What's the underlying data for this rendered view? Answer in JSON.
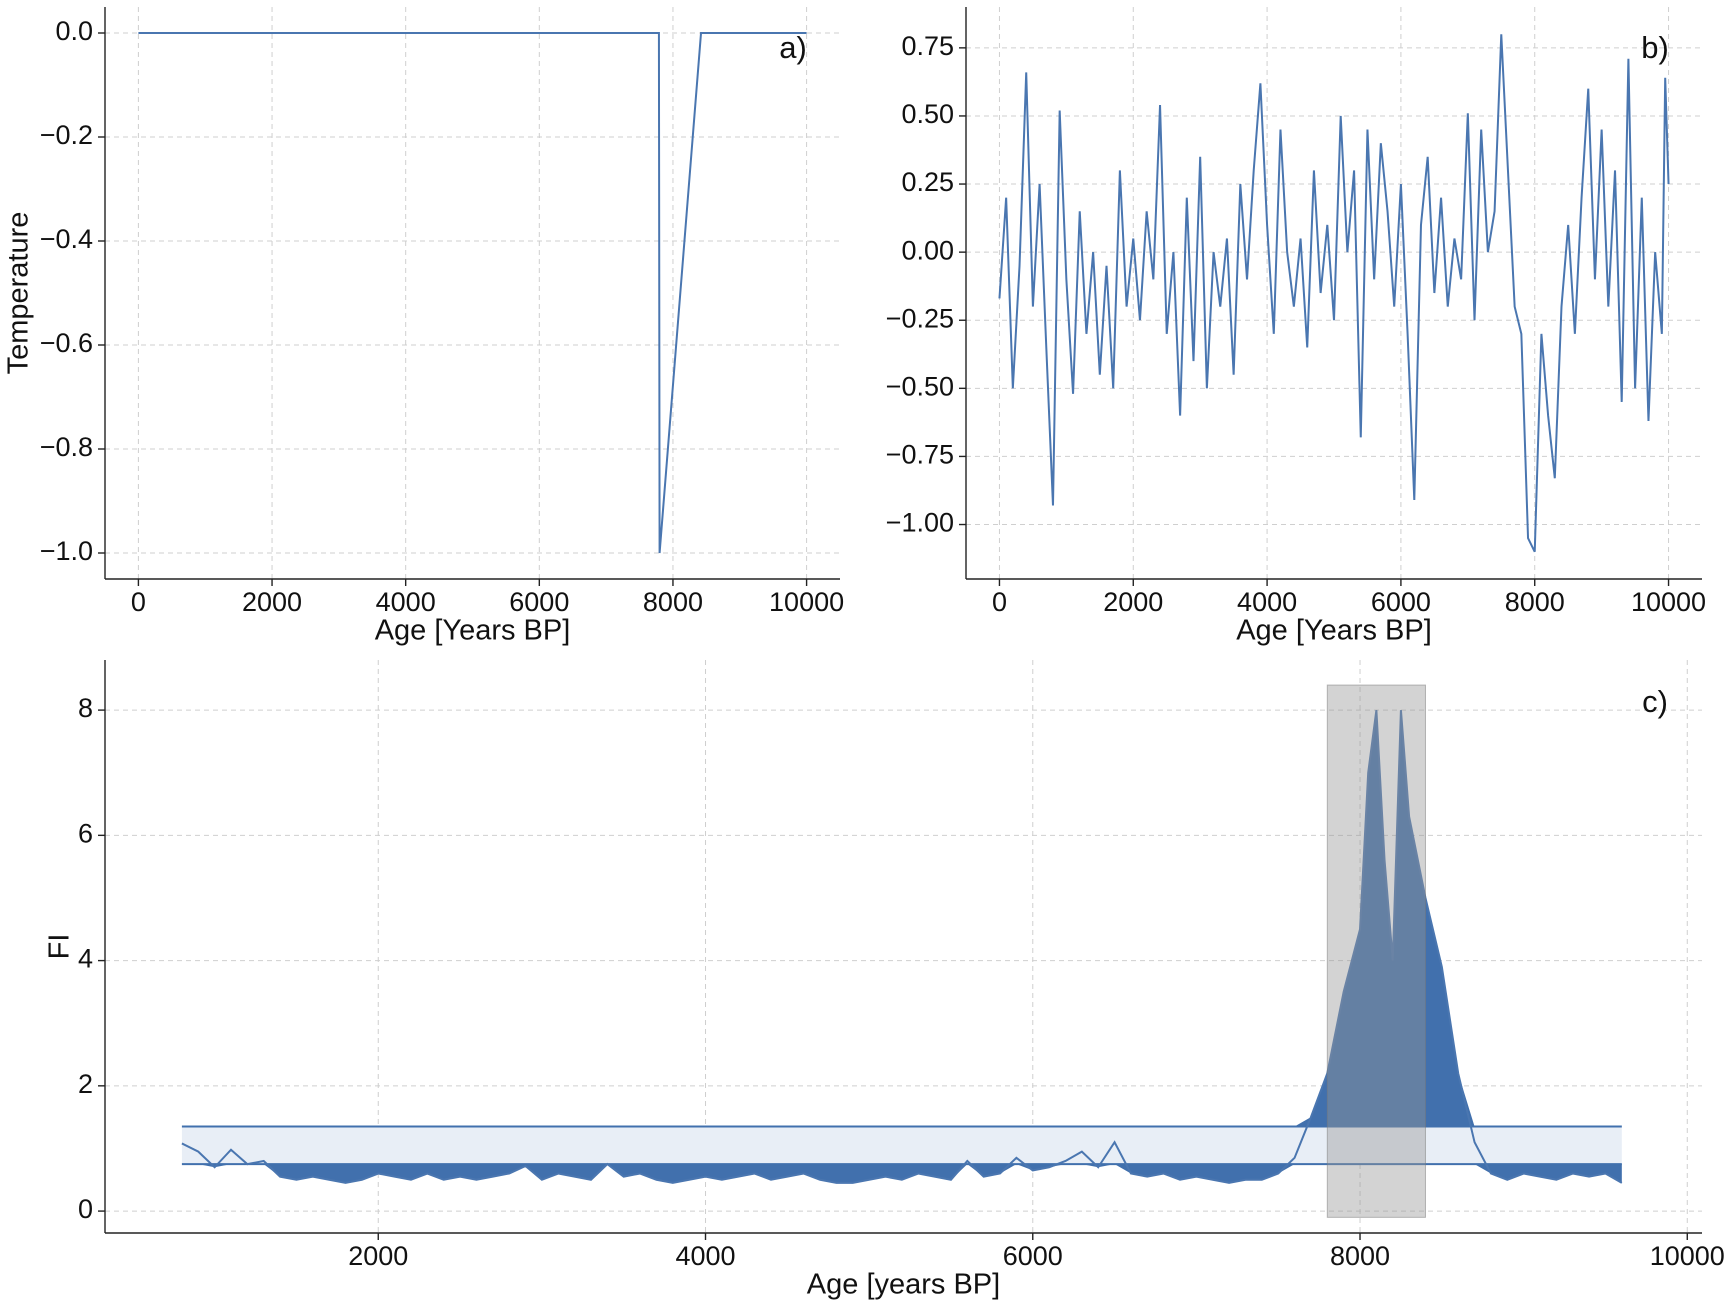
{
  "chart_data": [
    {
      "type": "line",
      "annotation": "a)",
      "ylabel": "Temperature",
      "xlabel": "Age [Years BP]",
      "color": "#4a76b0",
      "grid": true,
      "x": [
        0,
        7790,
        7800,
        8420,
        10000
      ],
      "values": [
        0,
        0,
        -1,
        0,
        0
      ],
      "xlim": [
        -500,
        10500
      ],
      "xticks": [
        0,
        2000,
        4000,
        6000,
        8000,
        10000
      ],
      "ylim": [
        -1.05,
        0.05
      ],
      "yticks": [
        {
          "value": 0,
          "label": "0.0"
        },
        {
          "value": -0.2,
          "label": "−0.2"
        },
        {
          "value": -0.4,
          "label": "−0.4"
        },
        {
          "value": -0.6,
          "label": "−0.6"
        },
        {
          "value": -0.8,
          "label": "−0.8"
        },
        {
          "value": -1,
          "label": "−1.0"
        }
      ]
    },
    {
      "type": "line",
      "annotation": "b)",
      "xlabel": "Age [Years BP]",
      "color": "#4a76b0",
      "grid": true,
      "x": [
        0,
        100,
        200,
        300,
        400,
        500,
        600,
        700,
        800,
        900,
        1000,
        1100,
        1200,
        1300,
        1400,
        1500,
        1600,
        1700,
        1800,
        1900,
        2000,
        2100,
        2200,
        2300,
        2400,
        2500,
        2600,
        2700,
        2800,
        2900,
        3000,
        3100,
        3200,
        3300,
        3400,
        3500,
        3600,
        3700,
        3800,
        3900,
        4000,
        4100,
        4200,
        4300,
        4400,
        4500,
        4600,
        4700,
        4800,
        4900,
        5000,
        5100,
        5200,
        5300,
        5400,
        5500,
        5600,
        5700,
        5800,
        5900,
        6000,
        6100,
        6200,
        6300,
        6400,
        6500,
        6600,
        6700,
        6800,
        6900,
        7000,
        7100,
        7200,
        7300,
        7400,
        7500,
        7600,
        7700,
        7800,
        7900,
        8000,
        8100,
        8200,
        8300,
        8400,
        8500,
        8600,
        8700,
        8800,
        8900,
        9000,
        9100,
        9200,
        9300,
        9400,
        9500,
        9600,
        9700,
        9800,
        9900,
        9950,
        10000
      ],
      "values": [
        -0.17,
        0.2,
        -0.5,
        -0.05,
        0.66,
        -0.2,
        0.25,
        -0.35,
        -0.93,
        0.52,
        -0.1,
        -0.52,
        0.15,
        -0.3,
        0.0,
        -0.45,
        -0.05,
        -0.5,
        0.3,
        -0.2,
        0.05,
        -0.25,
        0.15,
        -0.1,
        0.54,
        -0.3,
        0.0,
        -0.6,
        0.2,
        -0.4,
        0.35,
        -0.5,
        0.0,
        -0.2,
        0.05,
        -0.45,
        0.25,
        -0.1,
        0.3,
        0.62,
        0.1,
        -0.3,
        0.45,
        0.0,
        -0.2,
        0.05,
        -0.35,
        0.3,
        -0.15,
        0.1,
        -0.25,
        0.5,
        0.0,
        0.3,
        -0.68,
        0.45,
        -0.1,
        0.4,
        0.15,
        -0.2,
        0.25,
        -0.3,
        -0.91,
        0.1,
        0.35,
        -0.15,
        0.2,
        -0.2,
        0.05,
        -0.1,
        0.51,
        -0.25,
        0.45,
        0.0,
        0.15,
        0.8,
        0.3,
        -0.2,
        -0.3,
        -1.05,
        -1.1,
        -0.3,
        -0.6,
        -0.83,
        -0.2,
        0.1,
        -0.3,
        0.2,
        0.6,
        -0.1,
        0.45,
        -0.2,
        0.3,
        -0.55,
        0.71,
        -0.5,
        0.2,
        -0.62,
        0.0,
        -0.3,
        0.64,
        0.25
      ],
      "xlim": [
        -500,
        10500
      ],
      "xticks": [
        0,
        2000,
        4000,
        6000,
        8000,
        10000
      ],
      "ylim": [
        -1.2,
        0.9
      ],
      "yticks": [
        {
          "value": -1,
          "label": "−1.00"
        },
        {
          "value": -0.75,
          "label": "−0.75"
        },
        {
          "value": -0.5,
          "label": "−0.50"
        },
        {
          "value": -0.25,
          "label": "−0.25"
        },
        {
          "value": 0,
          "label": "0.00"
        },
        0.25,
        {
          "value": 0.5,
          "label": "0.50"
        },
        0.75
      ]
    },
    {
      "type": "threshold",
      "annotation": "c)",
      "ylabel": "FI",
      "xlabel": "Age [years BP]",
      "color": "#4a76b0",
      "fill_color": "#4170ad",
      "band_color": "#e8eef6",
      "grid": true,
      "x": [
        800,
        900,
        1000,
        1100,
        1200,
        1300,
        1400,
        1500,
        1600,
        1700,
        1800,
        1900,
        2000,
        2100,
        2200,
        2300,
        2400,
        2500,
        2600,
        2700,
        2800,
        2900,
        3000,
        3100,
        3200,
        3300,
        3400,
        3500,
        3600,
        3700,
        3800,
        3900,
        4000,
        4100,
        4200,
        4300,
        4400,
        4500,
        4600,
        4700,
        4800,
        4900,
        5000,
        5100,
        5200,
        5300,
        5400,
        5500,
        5600,
        5700,
        5800,
        5900,
        6000,
        6100,
        6200,
        6300,
        6400,
        6500,
        6600,
        6700,
        6800,
        6900,
        7000,
        7100,
        7200,
        7300,
        7400,
        7500,
        7600,
        7700,
        7800,
        7900,
        8000,
        8050,
        8100,
        8150,
        8200,
        8250,
        8300,
        8400,
        8500,
        8600,
        8700,
        8800,
        8900,
        9000,
        9100,
        9200,
        9300,
        9400,
        9500,
        9600
      ],
      "values": [
        1.08,
        0.95,
        0.7,
        0.98,
        0.75,
        0.8,
        0.55,
        0.5,
        0.55,
        0.5,
        0.45,
        0.5,
        0.6,
        0.55,
        0.5,
        0.6,
        0.5,
        0.55,
        0.5,
        0.55,
        0.6,
        0.72,
        0.5,
        0.6,
        0.55,
        0.5,
        0.75,
        0.55,
        0.6,
        0.5,
        0.45,
        0.5,
        0.55,
        0.5,
        0.55,
        0.6,
        0.5,
        0.55,
        0.6,
        0.5,
        0.45,
        0.45,
        0.5,
        0.55,
        0.5,
        0.6,
        0.55,
        0.5,
        0.8,
        0.55,
        0.6,
        0.85,
        0.65,
        0.7,
        0.8,
        0.95,
        0.7,
        1.1,
        0.6,
        0.55,
        0.6,
        0.5,
        0.55,
        0.5,
        0.45,
        0.5,
        0.5,
        0.6,
        0.85,
        1.5,
        2.2,
        3.5,
        4.5,
        7.0,
        8.0,
        5.6,
        4.0,
        8.0,
        6.3,
        5.0,
        3.9,
        2.2,
        1.1,
        0.6,
        0.5,
        0.6,
        0.55,
        0.5,
        0.6,
        0.55,
        0.6,
        0.45
      ],
      "lower": 0.75,
      "upper": 1.35,
      "highlight": {
        "x": [
          7800,
          8400
        ],
        "y": [
          -0.1,
          8.4
        ]
      },
      "xlim": [
        330,
        10090
      ],
      "xticks": [
        2000,
        4000,
        6000,
        8000,
        10000
      ],
      "ylim": [
        -0.35,
        8.8
      ],
      "yticks": [
        0,
        2,
        4,
        6,
        8
      ]
    }
  ]
}
